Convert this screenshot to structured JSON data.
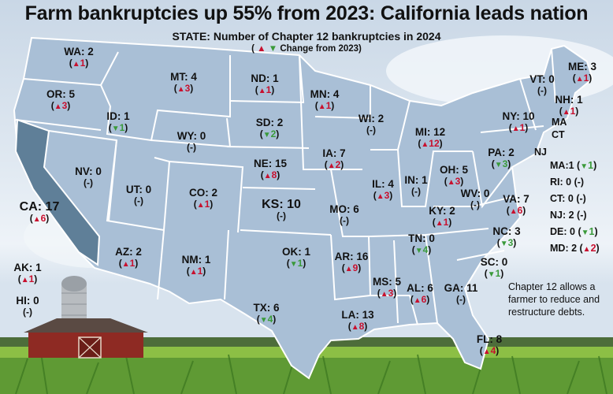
{
  "header": {
    "title": "Farm bankruptcies up 55% from 2023: California leads nation",
    "subtitle": "STATE: Number of Chapter 12 bankruptcies in 2024",
    "legend_open": "(",
    "legend_text": "Change from 2023)"
  },
  "legend_colors": {
    "increase": "#c8102e",
    "decrease": "#3a9a3a",
    "map_fill": "#a9bfd6",
    "highlight": "#5f7f98"
  },
  "states": [
    {
      "id": "wa",
      "name": "WA: 2",
      "change": "1",
      "dir": "up"
    },
    {
      "id": "or",
      "name": "OR: 5",
      "change": "3",
      "dir": "up"
    },
    {
      "id": "ca",
      "name": "CA: 17",
      "change": "6",
      "dir": "up"
    },
    {
      "id": "id",
      "name": "ID: 1",
      "change": "1",
      "dir": "down"
    },
    {
      "id": "nv",
      "name": "NV: 0",
      "change": "(-)",
      "dir": "none"
    },
    {
      "id": "mt",
      "name": "MT: 4",
      "change": "3",
      "dir": "up"
    },
    {
      "id": "wy",
      "name": "WY: 0",
      "change": "(-)",
      "dir": "none"
    },
    {
      "id": "ut",
      "name": "UT: 0",
      "change": "(-)",
      "dir": "none"
    },
    {
      "id": "az",
      "name": "AZ: 2",
      "change": "1",
      "dir": "up"
    },
    {
      "id": "co",
      "name": "CO: 2",
      "change": "1",
      "dir": "up"
    },
    {
      "id": "nm",
      "name": "NM: 1",
      "change": "1",
      "dir": "up"
    },
    {
      "id": "nd",
      "name": "ND: 1",
      "change": "1",
      "dir": "up"
    },
    {
      "id": "sd",
      "name": "SD: 2",
      "change": "2",
      "dir": "down"
    },
    {
      "id": "ne",
      "name": "NE: 15",
      "change": "8",
      "dir": "up"
    },
    {
      "id": "ks",
      "name": "KS: 10",
      "change": "(-)",
      "dir": "none"
    },
    {
      "id": "ok",
      "name": "OK: 1",
      "change": "1",
      "dir": "down"
    },
    {
      "id": "tx",
      "name": "TX: 6",
      "change": "4",
      "dir": "down"
    },
    {
      "id": "mn",
      "name": "MN: 4",
      "change": "1",
      "dir": "up"
    },
    {
      "id": "ia",
      "name": "IA: 7",
      "change": "2",
      "dir": "up"
    },
    {
      "id": "mo",
      "name": "MO: 6",
      "change": "(-)",
      "dir": "none"
    },
    {
      "id": "ar",
      "name": "AR: 16",
      "change": "9",
      "dir": "up"
    },
    {
      "id": "la",
      "name": "LA: 13",
      "change": "8",
      "dir": "up"
    },
    {
      "id": "wi",
      "name": "WI: 2",
      "change": "(-)",
      "dir": "none"
    },
    {
      "id": "il",
      "name": "IL: 4",
      "change": "3",
      "dir": "up"
    },
    {
      "id": "mi",
      "name": "MI: 12",
      "change": "12",
      "dir": "up"
    },
    {
      "id": "in",
      "name": "IN: 1",
      "change": "(-)",
      "dir": "none"
    },
    {
      "id": "oh",
      "name": "OH: 5",
      "change": "3",
      "dir": "up"
    },
    {
      "id": "ky",
      "name": "KY: 2",
      "change": "1",
      "dir": "up"
    },
    {
      "id": "tn",
      "name": "TN: 0",
      "change": "4",
      "dir": "down"
    },
    {
      "id": "ms",
      "name": "MS: 5",
      "change": "3",
      "dir": "up"
    },
    {
      "id": "al",
      "name": "AL: 6",
      "change": "6",
      "dir": "up"
    },
    {
      "id": "ga",
      "name": "GA: 11",
      "change": "(-)",
      "dir": "none"
    },
    {
      "id": "fl",
      "name": "FL: 8",
      "change": "4",
      "dir": "up"
    },
    {
      "id": "sc",
      "name": "SC: 0",
      "change": "1",
      "dir": "down"
    },
    {
      "id": "nc",
      "name": "NC: 3",
      "change": "3",
      "dir": "down"
    },
    {
      "id": "va",
      "name": "VA: 7",
      "change": "6",
      "dir": "up"
    },
    {
      "id": "wv",
      "name": "WV: 0",
      "change": "(-)",
      "dir": "none"
    },
    {
      "id": "pa",
      "name": "PA: 2",
      "change": "3",
      "dir": "down"
    },
    {
      "id": "ny",
      "name": "NY: 10",
      "change": "1",
      "dir": "up"
    },
    {
      "id": "vt",
      "name": "VT: 0",
      "change": "(-)",
      "dir": "none"
    },
    {
      "id": "nh",
      "name": "NH: 1",
      "change": "1",
      "dir": "up"
    },
    {
      "id": "me",
      "name": "ME: 3",
      "change": "1",
      "dir": "up"
    },
    {
      "id": "ak",
      "name": "AK: 1",
      "change": "1",
      "dir": "up"
    },
    {
      "id": "hi",
      "name": "HI: 0",
      "change": "(-)",
      "dir": "none"
    }
  ],
  "map_abbreviations": [
    "MA",
    "CT",
    "NJ"
  ],
  "side_list": [
    {
      "id": "ma",
      "name": "MA:1",
      "change": "1",
      "dir": "down"
    },
    {
      "id": "ri",
      "name": "RI: 0",
      "change": "(-)",
      "dir": "none"
    },
    {
      "id": "ct",
      "name": "CT: 0",
      "change": "(-)",
      "dir": "none"
    },
    {
      "id": "nj",
      "name": "NJ: 2",
      "change": "(-)",
      "dir": "none"
    },
    {
      "id": "de",
      "name": "DE: 0",
      "change": "1",
      "dir": "down"
    },
    {
      "id": "md",
      "name": "MD: 2",
      "change": "2",
      "dir": "up"
    }
  ],
  "note": "Chapter 12 allows a farmer to reduce and restructure debts."
}
